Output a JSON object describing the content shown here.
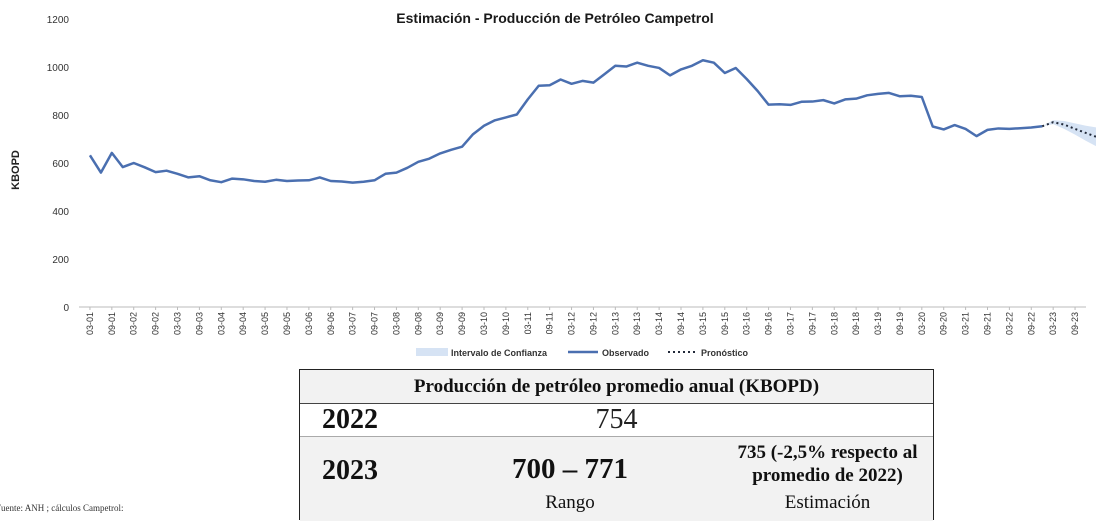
{
  "chart_data": {
    "type": "line",
    "title": "Estimación - Producción de Petróleo Campetrol",
    "ylabel": "KBOPD",
    "xlabel": "",
    "ylim": [
      0,
      1200
    ],
    "yticks": [
      0,
      200,
      400,
      600,
      800,
      1000,
      1200
    ],
    "grid": false,
    "legend_position": "bottom",
    "categories": [
      "03-01",
      "09-01",
      "03-02",
      "09-02",
      "03-03",
      "09-03",
      "03-04",
      "09-04",
      "03-05",
      "09-05",
      "03-06",
      "09-06",
      "03-07",
      "09-07",
      "03-08",
      "09-08",
      "03-09",
      "09-09",
      "03-10",
      "09-10",
      "03-11",
      "09-11",
      "03-12",
      "09-12",
      "03-13",
      "09-13",
      "03-14",
      "09-14",
      "03-15",
      "09-15",
      "03-16",
      "09-16",
      "03-17",
      "09-17",
      "03-18",
      "09-18",
      "03-19",
      "09-19",
      "03-20",
      "09-20",
      "03-21",
      "09-21",
      "03-22",
      "09-22",
      "03-23",
      "09-23"
    ],
    "series": [
      {
        "name": "Observado",
        "color": "#4a6fb0",
        "x": [
          0,
          0.5,
          1,
          1.5,
          2,
          2.5,
          3,
          3.5,
          4,
          4.5,
          5,
          5.5,
          6,
          6.5,
          7,
          7.5,
          8,
          8.5,
          9,
          9.5,
          10,
          10.5,
          11,
          11.5,
          12,
          12.5,
          13,
          13.5,
          14,
          14.5,
          15,
          15.5,
          16,
          16.5,
          17,
          17.5,
          18,
          18.5,
          19,
          19.5,
          20,
          20.5,
          21,
          21.5,
          22,
          22.5,
          23,
          23.5,
          24,
          24.5,
          25,
          25.5,
          26,
          26.5,
          27,
          27.5,
          28,
          28.5,
          29,
          29.5,
          30,
          30.5,
          31,
          31.5,
          32,
          32.5,
          33,
          33.5,
          34,
          34.5,
          35,
          35.5,
          36,
          36.5,
          37,
          37.5,
          38,
          38.5,
          39,
          39.5,
          40,
          40.5,
          41,
          41.5,
          42,
          42.5,
          43,
          43.5
        ],
        "values": [
          632,
          560,
          642,
          583,
          600,
          582,
          562,
          568,
          555,
          540,
          545,
          528,
          520,
          535,
          532,
          525,
          522,
          530,
          525,
          527,
          528,
          540,
          525,
          523,
          518,
          522,
          528,
          555,
          560,
          580,
          605,
          618,
          640,
          655,
          668,
          720,
          755,
          778,
          790,
          802,
          865,
          922,
          924,
          948,
          930,
          942,
          935,
          970,
          1005,
          1002,
          1018,
          1005,
          996,
          965,
          990,
          1005,
          1028,
          1018,
          975,
          996,
          950,
          900,
          843,
          845,
          842,
          855,
          856,
          862,
          848,
          865,
          868,
          882,
          888,
          892,
          878,
          880,
          875,
          752,
          740,
          758,
          742,
          712,
          738,
          744,
          742,
          745,
          748,
          753
        ]
      },
      {
        "name": "Pronóstico",
        "color": "#222a3a",
        "x": [
          43.5,
          44,
          44.5,
          45,
          45.5,
          46
        ],
        "values": [
          753,
          770,
          760,
          742,
          725,
          708
        ]
      },
      {
        "name": "Intervalo de Confianza",
        "color": "#d6e3f4",
        "x": [
          43.5,
          44,
          44.5,
          45,
          45.5,
          46
        ],
        "upper": [
          753,
          778,
          775,
          765,
          755,
          748
        ],
        "lower": [
          753,
          762,
          742,
          718,
          692,
          668
        ]
      }
    ]
  },
  "table": {
    "header": "Producción de petróleo promedio anual (KBOPD)",
    "year_2022": "2022",
    "value_2022": "754",
    "year_2023": "2023",
    "range_value": "700 – 771",
    "range_label": "Rango",
    "estimate_value": "735 (-2,5% respecto al promedio de 2022)",
    "estimate_label": "Estimación"
  },
  "source": "Fuente: ANH ; cálculos Campetrol:"
}
